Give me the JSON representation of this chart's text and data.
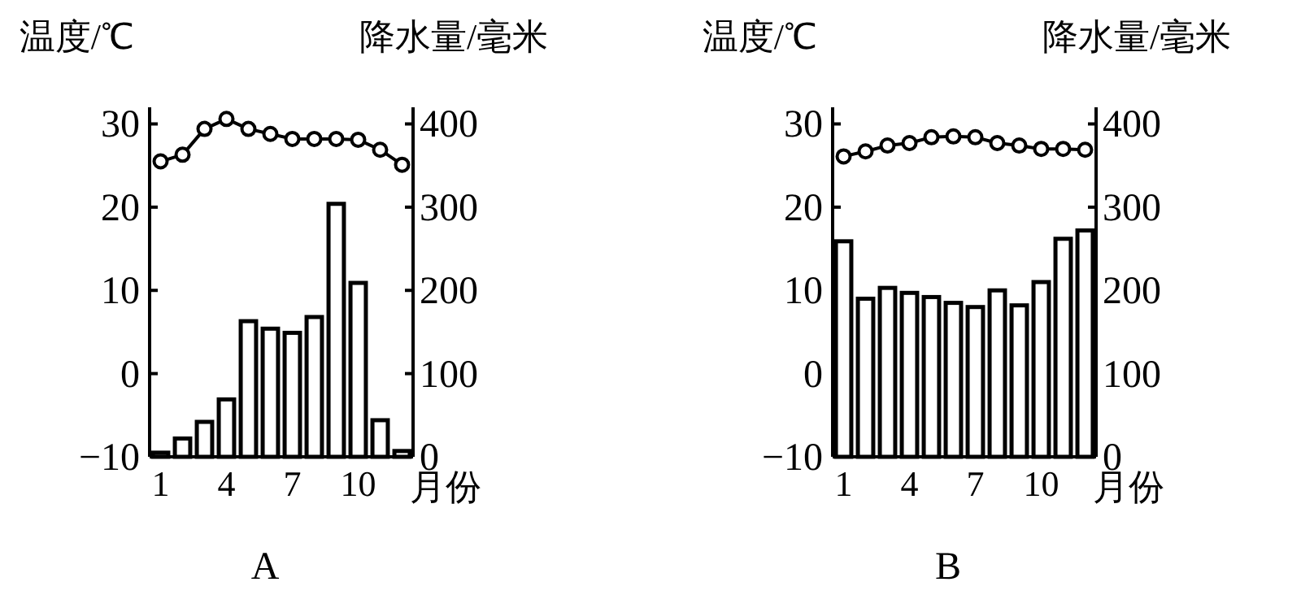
{
  "chart_data": [
    {
      "type": "bar",
      "title": "A",
      "ylabel": "温度/℃",
      "y2label": "降水量/毫米",
      "xlabel": "月份",
      "categories": [
        "1",
        null,
        null,
        "4",
        null,
        null,
        "7",
        null,
        null,
        "10",
        null,
        null
      ],
      "series": [
        {
          "axis": "y2",
          "color": "#ffffff",
          "values": [
            5,
            22,
            42,
            69,
            163,
            154,
            149,
            168,
            304,
            209,
            44,
            7
          ]
        },
        {
          "type": "line",
          "axis": "y",
          "color": "#000000",
          "marker": "circle",
          "values": [
            25.5,
            26.3,
            29.4,
            30.6,
            29.4,
            28.8,
            28.2,
            28.2,
            28.2,
            28.1,
            26.9,
            25.1
          ]
        }
      ],
      "ylim": [
        -10,
        32
      ],
      "yticks": [
        -10,
        0,
        10,
        20,
        30
      ],
      "y2lim": [
        0,
        420
      ],
      "y2ticks": [
        0,
        100,
        200,
        300,
        400
      ]
    },
    {
      "type": "bar",
      "title": "B",
      "ylabel": "温度/℃",
      "y2label": "降水量/毫米",
      "xlabel": "月份",
      "categories": [
        "1",
        null,
        null,
        "4",
        null,
        null,
        "7",
        null,
        null,
        "10",
        null,
        null
      ],
      "series": [
        {
          "axis": "y2",
          "color": "#ffffff",
          "values": [
            259,
            190,
            203,
            197,
            192,
            185,
            180,
            200,
            182,
            210,
            262,
            272
          ]
        },
        {
          "type": "line",
          "axis": "y",
          "color": "#000000",
          "marker": "circle",
          "values": [
            26.1,
            26.7,
            27.4,
            27.7,
            28.4,
            28.5,
            28.4,
            27.7,
            27.4,
            27.0,
            27.0,
            26.9
          ]
        }
      ],
      "ylim": [
        -10,
        32
      ],
      "yticks": [
        -10,
        0,
        10,
        20,
        30
      ],
      "y2lim": [
        0,
        420
      ],
      "y2ticks": [
        0,
        100,
        200,
        300,
        400
      ]
    }
  ]
}
